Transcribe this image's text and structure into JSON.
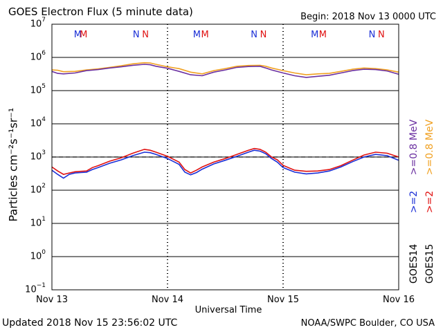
{
  "header": {
    "title": "GOES Electron Flux (5 minute data)",
    "begin": "Begin: 2018 Nov 13 0000 UTC"
  },
  "footer": {
    "updated": "Updated 2018 Nov 15 23:56:02 UTC",
    "credit": "NOAA/SWPC Boulder, CO USA"
  },
  "colors": {
    "goes14_2mev": "#1a2ed6",
    "goes15_2mev": "#e01010",
    "goes14_08mev": "#6a2fa0",
    "goes15_08mev": "#f0a020",
    "threshold": "#000000"
  },
  "chart_data": {
    "type": "line",
    "title": "GOES Electron Flux (5 minute data)",
    "xlabel": "Universal Time",
    "ylabel": "Particles cm⁻²s⁻¹sr⁻¹",
    "x_tick_labels": [
      "Nov 13",
      "Nov 14",
      "Nov 15",
      "Nov 16"
    ],
    "xlim_days": [
      0,
      3
    ],
    "y_scale": "log",
    "ylim": [
      0.1,
      10000000
    ],
    "y_tick_labels": [
      {
        "base": "10",
        "exp": "7"
      },
      {
        "base": "10",
        "exp": "6"
      },
      {
        "base": "10",
        "exp": "5"
      },
      {
        "base": "10",
        "exp": "4"
      },
      {
        "base": "10",
        "exp": "3"
      },
      {
        "base": "10",
        "exp": "2"
      },
      {
        "base": "10",
        "exp": "1"
      },
      {
        "base": "10",
        "exp": "0"
      },
      {
        "base": "10",
        "exp": "−1"
      }
    ],
    "threshold": 1000,
    "markers": [
      {
        "day": 0.22,
        "label": "M",
        "color": "blue"
      },
      {
        "day": 0.27,
        "label": "M",
        "color": "red"
      },
      {
        "day": 0.73,
        "label": "N",
        "color": "blue"
      },
      {
        "day": 0.81,
        "label": "N",
        "color": "red"
      },
      {
        "day": 1.25,
        "label": "M",
        "color": "blue"
      },
      {
        "day": 1.32,
        "label": "M",
        "color": "red"
      },
      {
        "day": 1.75,
        "label": "N",
        "color": "blue"
      },
      {
        "day": 1.83,
        "label": "N",
        "color": "red"
      },
      {
        "day": 2.27,
        "label": "M",
        "color": "blue"
      },
      {
        "day": 2.34,
        "label": "M",
        "color": "red"
      },
      {
        "day": 2.77,
        "label": "N",
        "color": "blue"
      },
      {
        "day": 2.85,
        "label": "N",
        "color": "red"
      }
    ],
    "series": [
      {
        "name": "GOES15 >=0.8 MeV",
        "color": "#f0a020",
        "x": [
          0.0,
          0.05,
          0.1,
          0.2,
          0.3,
          0.4,
          0.5,
          0.6,
          0.7,
          0.8,
          0.85,
          0.9,
          1.0,
          1.1,
          1.2,
          1.3,
          1.4,
          1.5,
          1.6,
          1.7,
          1.8,
          1.85,
          1.9,
          2.0,
          2.1,
          2.2,
          2.3,
          2.4,
          2.5,
          2.6,
          2.7,
          2.8,
          2.9,
          3.0
        ],
        "y": [
          420000,
          410000,
          370000,
          380000,
          420000,
          450000,
          500000,
          560000,
          640000,
          690000,
          680000,
          620000,
          520000,
          460000,
          360000,
          320000,
          400000,
          460000,
          540000,
          570000,
          580000,
          540000,
          480000,
          400000,
          340000,
          300000,
          320000,
          330000,
          380000,
          440000,
          480000,
          460000,
          420000,
          360000
        ]
      },
      {
        "name": "GOES14 >=0.8 MeV",
        "color": "#6a2fa0",
        "x": [
          0.0,
          0.05,
          0.1,
          0.2,
          0.3,
          0.4,
          0.5,
          0.6,
          0.7,
          0.8,
          0.85,
          0.9,
          1.0,
          1.1,
          1.2,
          1.3,
          1.4,
          1.5,
          1.6,
          1.7,
          1.8,
          1.85,
          1.9,
          2.0,
          2.1,
          2.2,
          2.3,
          2.4,
          2.5,
          2.6,
          2.7,
          2.8,
          2.9,
          3.0
        ],
        "y": [
          380000,
          330000,
          320000,
          340000,
          400000,
          430000,
          480000,
          520000,
          580000,
          620000,
          600000,
          540000,
          470000,
          380000,
          300000,
          280000,
          360000,
          420000,
          500000,
          530000,
          540000,
          480000,
          420000,
          340000,
          280000,
          250000,
          270000,
          290000,
          340000,
          400000,
          440000,
          430000,
          390000,
          310000
        ]
      },
      {
        "name": "GOES15 >=2 MeV",
        "color": "#e01010",
        "x": [
          0.0,
          0.05,
          0.1,
          0.15,
          0.2,
          0.25,
          0.3,
          0.35,
          0.4,
          0.5,
          0.6,
          0.7,
          0.8,
          0.85,
          0.9,
          1.0,
          1.1,
          1.15,
          1.2,
          1.25,
          1.3,
          1.4,
          1.5,
          1.6,
          1.7,
          1.75,
          1.8,
          1.85,
          1.9,
          1.95,
          2.0,
          2.1,
          2.2,
          2.3,
          2.4,
          2.5,
          2.6,
          2.7,
          2.8,
          2.9,
          3.0
        ],
        "y": [
          500,
          380,
          300,
          330,
          360,
          370,
          380,
          480,
          550,
          750,
          950,
          1300,
          1700,
          1600,
          1400,
          1050,
          700,
          420,
          330,
          400,
          500,
          700,
          900,
          1200,
          1600,
          1800,
          1700,
          1400,
          1000,
          820,
          560,
          400,
          370,
          380,
          420,
          550,
          800,
          1150,
          1400,
          1300,
          1000
        ]
      },
      {
        "name": "GOES14 >=2 MeV",
        "color": "#1a2ed6",
        "x": [
          0.0,
          0.05,
          0.1,
          0.15,
          0.2,
          0.25,
          0.3,
          0.35,
          0.4,
          0.5,
          0.6,
          0.7,
          0.8,
          0.85,
          0.9,
          1.0,
          1.1,
          1.15,
          1.2,
          1.25,
          1.3,
          1.4,
          1.5,
          1.6,
          1.7,
          1.75,
          1.8,
          1.85,
          1.9,
          1.95,
          2.0,
          2.1,
          2.2,
          2.3,
          2.4,
          2.5,
          2.6,
          2.7,
          2.8,
          2.9,
          3.0
        ],
        "y": [
          400,
          300,
          230,
          300,
          330,
          340,
          350,
          420,
          480,
          650,
          820,
          1100,
          1400,
          1350,
          1200,
          900,
          600,
          350,
          290,
          340,
          430,
          620,
          800,
          1050,
          1400,
          1600,
          1500,
          1250,
          900,
          700,
          480,
          350,
          310,
          330,
          380,
          500,
          720,
          1000,
          1200,
          1100,
          800
        ]
      }
    ],
    "legend": [
      {
        "label": "GOES15",
        "parts": [
          {
            "text": ">=2",
            "color": "#e01010"
          },
          {
            "text": ">=0.8 MeV",
            "color": "#f0a020"
          }
        ]
      },
      {
        "label": "GOES14",
        "parts": [
          {
            "text": ">=2",
            "color": "#1a2ed6"
          },
          {
            "text": ">=0.8 MeV",
            "color": "#6a2fa0"
          }
        ]
      }
    ],
    "grid": true,
    "legend_placement": "right"
  }
}
